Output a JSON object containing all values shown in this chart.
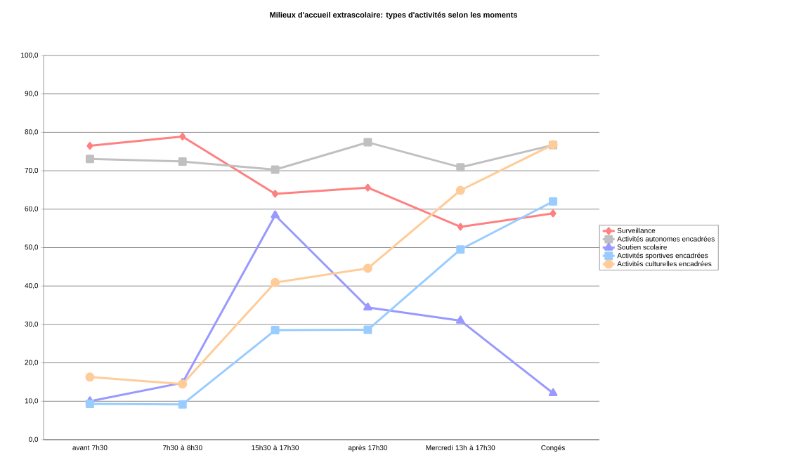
{
  "chart_data": {
    "type": "line",
    "title": "Milieux d'accueil extrascolaire: types d'activités selon les moments",
    "categories": [
      "avant 7h30",
      "7h30 à 8h30",
      "15h30 à 17h30",
      "après 17h30",
      "Mercredi 13h à 17h30",
      "Congés"
    ],
    "series": [
      {
        "name": "Surveillance",
        "color": "#ff8080",
        "marker": "diamond",
        "values": [
          76.5,
          78.9,
          64.0,
          65.6,
          55.4,
          58.9
        ]
      },
      {
        "name": "Activités autonomes encadrées",
        "color": "#c0c0c0",
        "marker": "square",
        "values": [
          73.1,
          72.4,
          70.3,
          77.4,
          70.9,
          76.7
        ]
      },
      {
        "name": "Soutien scolaire",
        "color": "#9999ff",
        "marker": "triangle",
        "values": [
          10.0,
          14.8,
          58.4,
          34.4,
          31.0,
          12.1
        ]
      },
      {
        "name": "Activités sportives encadrées",
        "color": "#99ccff",
        "marker": "square",
        "values": [
          9.3,
          9.2,
          28.5,
          28.6,
          49.5,
          62.0
        ]
      },
      {
        "name": "Activités culturelles encadrées",
        "color": "#ffcc99",
        "marker": "circle",
        "values": [
          16.3,
          14.5,
          40.9,
          44.6,
          64.9,
          76.8
        ]
      }
    ],
    "ylim": [
      0,
      100
    ],
    "yticks": [
      {
        "value": 0,
        "label": "0,0"
      },
      {
        "value": 10,
        "label": "10,0"
      },
      {
        "value": 20,
        "label": "20,0"
      },
      {
        "value": 30,
        "label": "30,0"
      },
      {
        "value": 40,
        "label": "40,0"
      },
      {
        "value": 50,
        "label": "50,0"
      },
      {
        "value": 60,
        "label": "60,0"
      },
      {
        "value": 70,
        "label": "70,0"
      },
      {
        "value": 80,
        "label": "80,0"
      },
      {
        "value": 90,
        "label": "90,0"
      },
      {
        "value": 100,
        "label": "100,0"
      }
    ],
    "grid": "y",
    "legend": "right"
  }
}
